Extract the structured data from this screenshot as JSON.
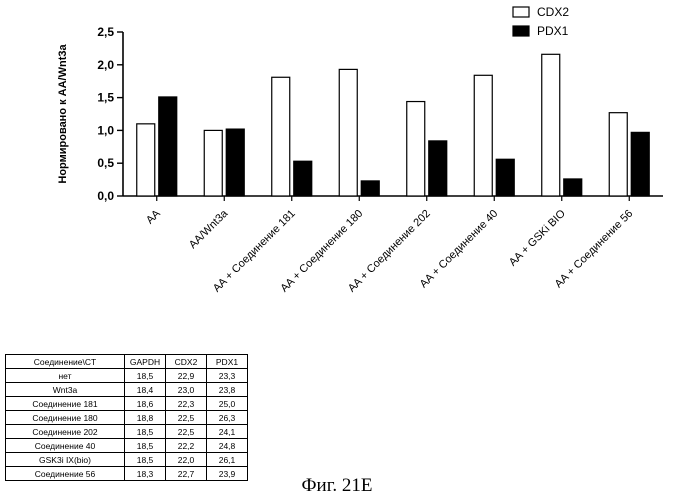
{
  "chart_data": {
    "type": "bar",
    "ylabel": "Нормировано к AA/Wnt3a",
    "ylim": [
      0,
      2.5
    ],
    "yticks": [
      "0,0",
      "0,5",
      "1,0",
      "1,5",
      "2,0",
      "2,5"
    ],
    "categories": [
      "AA",
      "AA/Wnt3a",
      "AA + Соединение 181",
      "AA + Соединение 180",
      "AA + Соединение 202",
      "AA + Соединение 40",
      "AA + GSKi BIO",
      "AA + Соединение 56"
    ],
    "series": [
      {
        "name": "CDX2",
        "values": [
          1.1,
          1.0,
          1.81,
          1.93,
          1.44,
          1.84,
          2.16,
          1.27
        ]
      },
      {
        "name": "PDX1",
        "values": [
          1.51,
          1.02,
          0.53,
          0.23,
          0.84,
          0.56,
          0.26,
          0.97
        ]
      }
    ],
    "legend_position": "top-right",
    "colors": {
      "CDX2": "#ffffff",
      "PDX1": "#000000"
    }
  },
  "table": {
    "headers": [
      "Соединение\\CT",
      "GAPDH",
      "CDX2",
      "PDX1"
    ],
    "rows": [
      [
        "нет",
        "18,5",
        "22,9",
        "23,3"
      ],
      [
        "Wnt3a",
        "18,4",
        "23,0",
        "23,8"
      ],
      [
        "Соединение 181",
        "18,6",
        "22,3",
        "25,0"
      ],
      [
        "Соединение 180",
        "18,8",
        "22,5",
        "26,3"
      ],
      [
        "Соединение 202",
        "18,5",
        "22,5",
        "24,1"
      ],
      [
        "Соединение 40",
        "18,5",
        "22,2",
        "24,8"
      ],
      [
        "GSK3i IX(bio)",
        "18,5",
        "22,0",
        "26,1"
      ],
      [
        "Соединение 56",
        "18,3",
        "22,7",
        "23,9"
      ]
    ]
  },
  "caption": "Фиг. 21E"
}
